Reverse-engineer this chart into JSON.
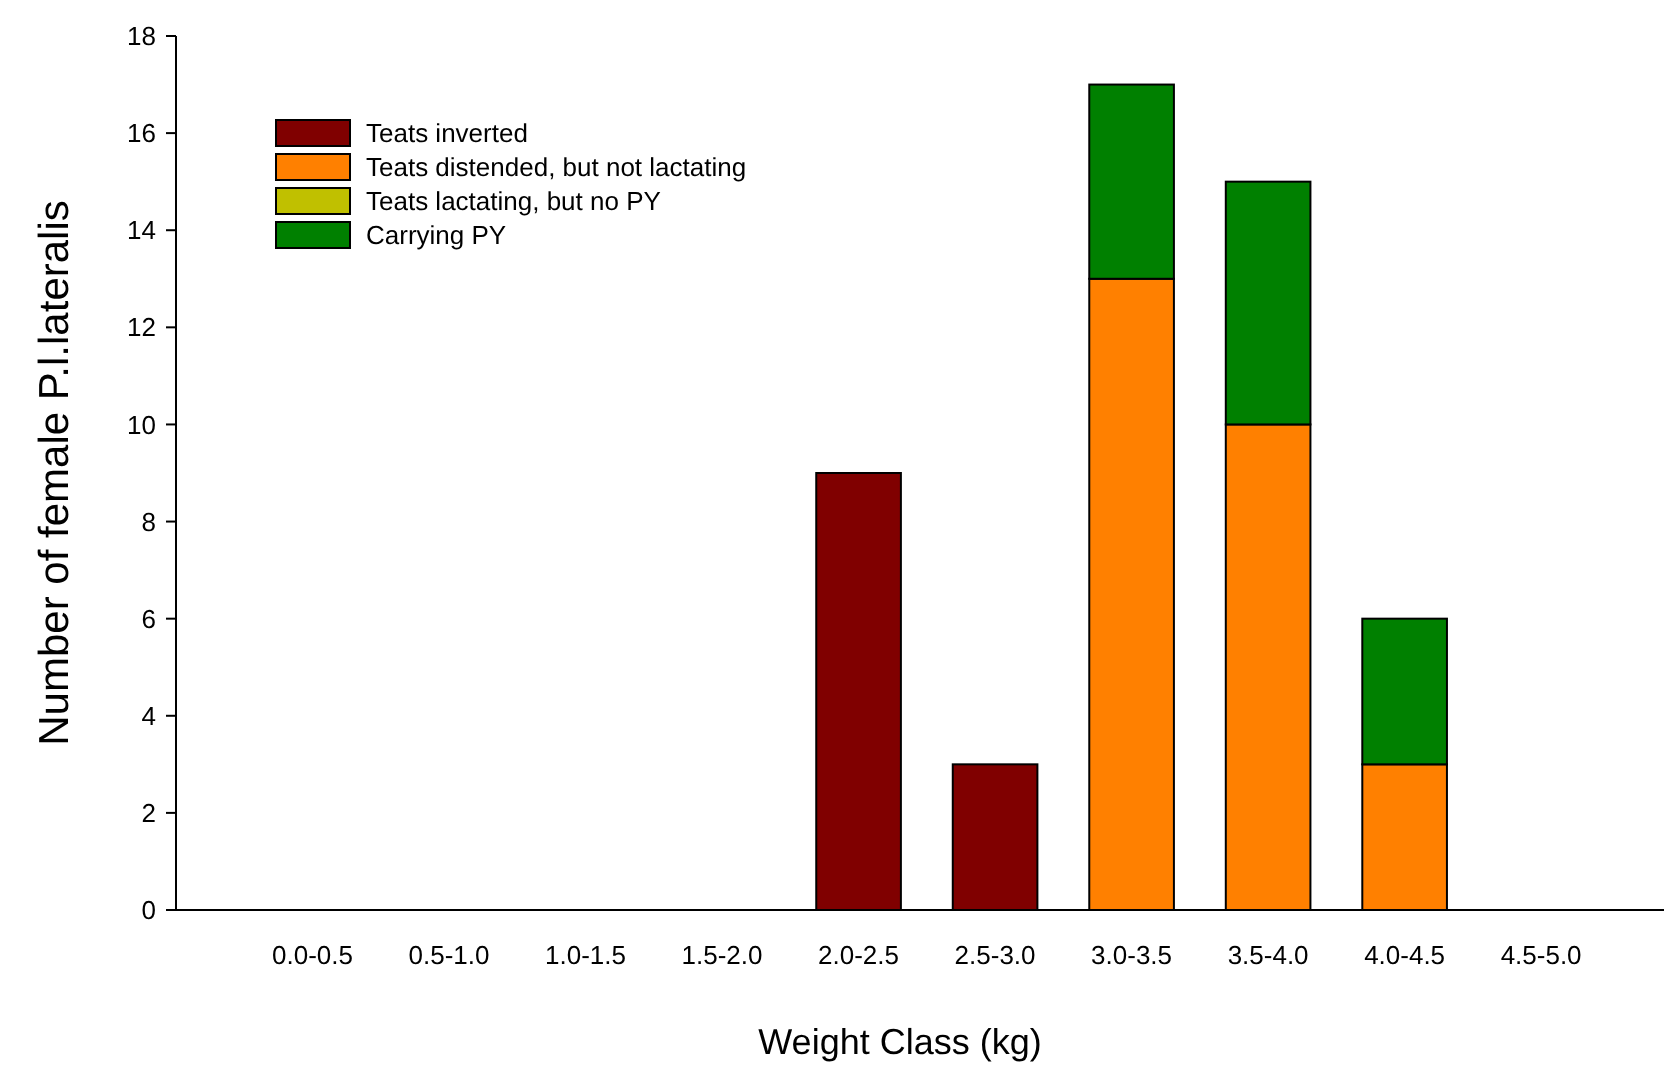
{
  "chart_data": {
    "type": "bar",
    "stacked": true,
    "xlabel": "Weight Class (kg)",
    "ylabel": "Number of female P.l.lateralis",
    "categories": [
      "0.0-0.5",
      "0.5-1.0",
      "1.0-1.5",
      "1.5-2.0",
      "2.0-2.5",
      "2.5-3.0",
      "3.0-3.5",
      "3.5-4.0",
      "4.0-4.5",
      "4.5-5.0"
    ],
    "series": [
      {
        "name": "Teats inverted",
        "color": "#800000",
        "values": [
          0,
          0,
          0,
          0,
          9,
          3,
          0,
          0,
          0,
          0
        ]
      },
      {
        "name": "Teats distended, but not lactating",
        "color": "#ff8000",
        "values": [
          0,
          0,
          0,
          0,
          0,
          0,
          13,
          10,
          3,
          0
        ]
      },
      {
        "name": "Teats lactating, but no PY",
        "color": "#c0c000",
        "values": [
          0,
          0,
          0,
          0,
          0,
          0,
          0,
          0,
          0,
          0
        ]
      },
      {
        "name": "Carrying PY",
        "color": "#008000",
        "values": [
          0,
          0,
          0,
          0,
          0,
          0,
          4,
          5,
          3,
          0
        ]
      }
    ],
    "ylim": [
      0,
      18
    ],
    "yticks": [
      0,
      2,
      4,
      6,
      8,
      10,
      12,
      14,
      16,
      18
    ],
    "grid": false,
    "legend": "top left"
  }
}
